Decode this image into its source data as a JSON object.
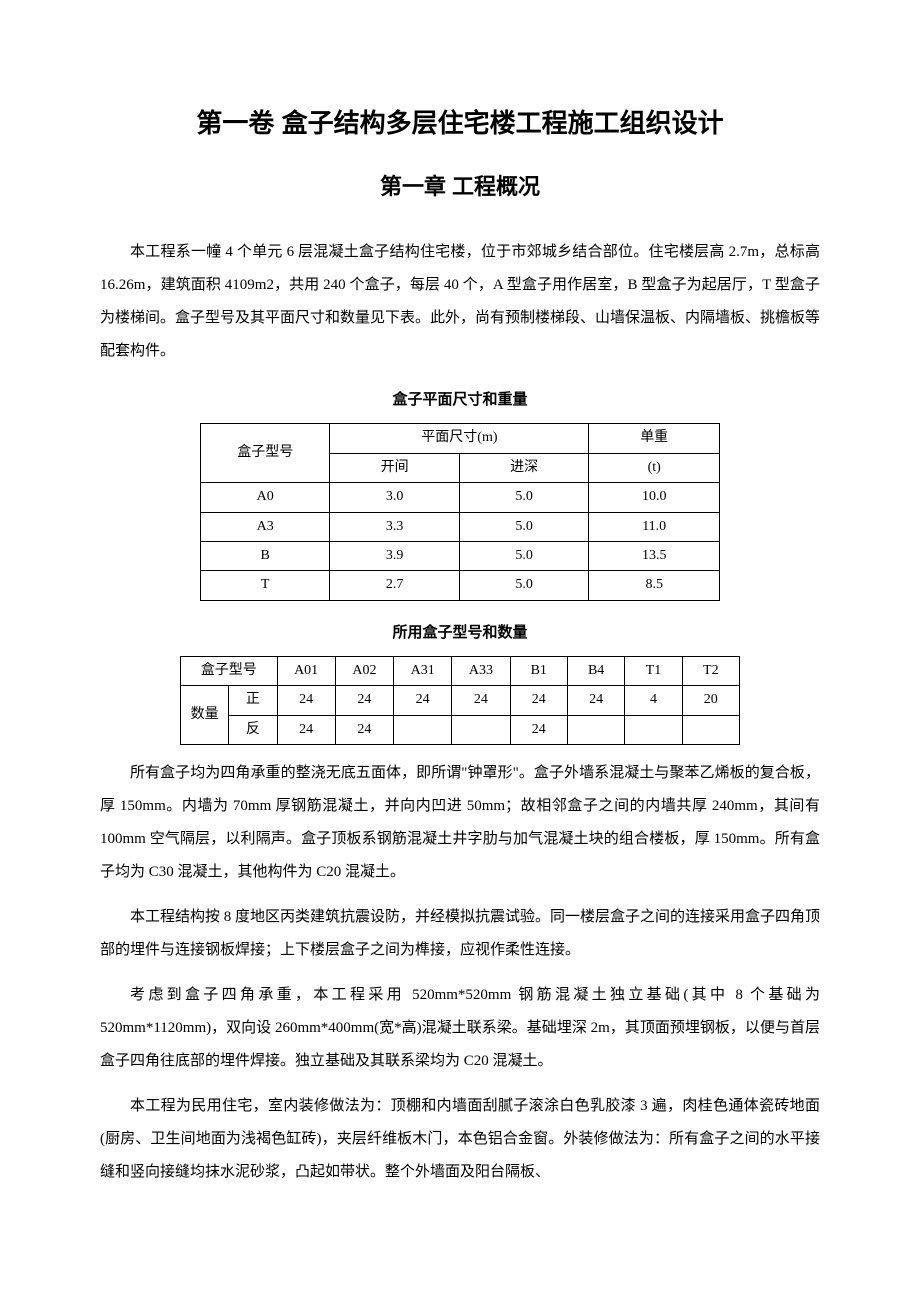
{
  "title_main": "第一卷  盒子结构多层住宅楼工程施工组织设计",
  "title_chapter": "第一章  工程概况",
  "p1": "本工程系一幢 4 个单元 6 层混凝土盒子结构住宅楼，位于市郊城乡结合部位。住宅楼层高 2.7m，总标高 16.26m，建筑面积 4109m2，共用 240 个盒子，每层 40 个，A 型盒子用作居室，B 型盒子为起居厅，T 型盒子为楼梯间。盒子型号及其平面尺寸和数量见下表。此外，尚有预制楼梯段、山墙保温板、内隔墙板、挑檐板等配套构件。",
  "table1": {
    "caption": "盒子平面尺寸和重量",
    "header_model": "盒子型号",
    "header_dim": "平面尺寸(m)",
    "header_kaijian": "开间",
    "header_jinshen": "进深",
    "header_weight": "单重",
    "header_weight_unit": "(t)",
    "rows": [
      {
        "model": "A0",
        "kaijian": "3.0",
        "jinshen": "5.0",
        "weight": "10.0"
      },
      {
        "model": "A3",
        "kaijian": "3.3",
        "jinshen": "5.0",
        "weight": "11.0"
      },
      {
        "model": "B",
        "kaijian": "3.9",
        "jinshen": "5.0",
        "weight": "13.5"
      },
      {
        "model": "T",
        "kaijian": "2.7",
        "jinshen": "5.0",
        "weight": "8.5"
      }
    ]
  },
  "table2": {
    "caption": "所用盒子型号和数量",
    "header_model": "盒子型号",
    "header_qty": "数量",
    "header_zheng": "正",
    "header_fan": "反",
    "cols": [
      "A01",
      "A02",
      "A31",
      "A33",
      "B1",
      "B4",
      "T1",
      "T2"
    ],
    "zheng": [
      "24",
      "24",
      "24",
      "24",
      "24",
      "24",
      "4",
      "20"
    ],
    "fan": [
      "24",
      "24",
      "",
      "",
      "24",
      "",
      "",
      ""
    ]
  },
  "p2": "所有盒子均为四角承重的整浇无底五面体，即所谓\"钟罩形\"。盒子外墙系混凝土与聚苯乙烯板的复合板，厚 150mm。内墙为 70mm 厚钢筋混凝土，并向内凹进 50mm；故相邻盒子之间的内墙共厚 240mm，其间有 100mm 空气隔层，以利隔声。盒子顶板系钢筋混凝土井字肋与加气混凝土块的组合楼板，厚 150mm。所有盒子均为 C30 混凝土，其他构件为 C20 混凝土。",
  "p3": "本工程结构按 8 度地区丙类建筑抗震设防，并经模拟抗震试验。同一楼层盒子之间的连接采用盒子四角顶部的埋件与连接钢板焊接；上下楼层盒子之间为榫接，应视作柔性连接。",
  "p4": "考虑到盒子四角承重，本工程采用 520mm*520mm 钢筋混凝土独立基础(其中 8 个基础为 520mm*1120mm)，双向设 260mm*400mm(宽*高)混凝土联系梁。基础埋深 2m，其顶面预埋钢板，以便与首层盒子四角往底部的埋件焊接。独立基础及其联系梁均为 C20 混凝土。",
  "p5": "本工程为民用住宅，室内装修做法为：顶棚和内墙面刮腻子滚涂白色乳胶漆 3 遍，肉桂色通体瓷砖地面(厨房、卫生间地面为浅褐色缸砖)，夹层纤维板木门，本色铝合金窗。外装修做法为：所有盒子之间的水平接缝和竖向接缝均抹水泥砂浆，凸起如带状。整个外墙面及阳台隔板、"
}
